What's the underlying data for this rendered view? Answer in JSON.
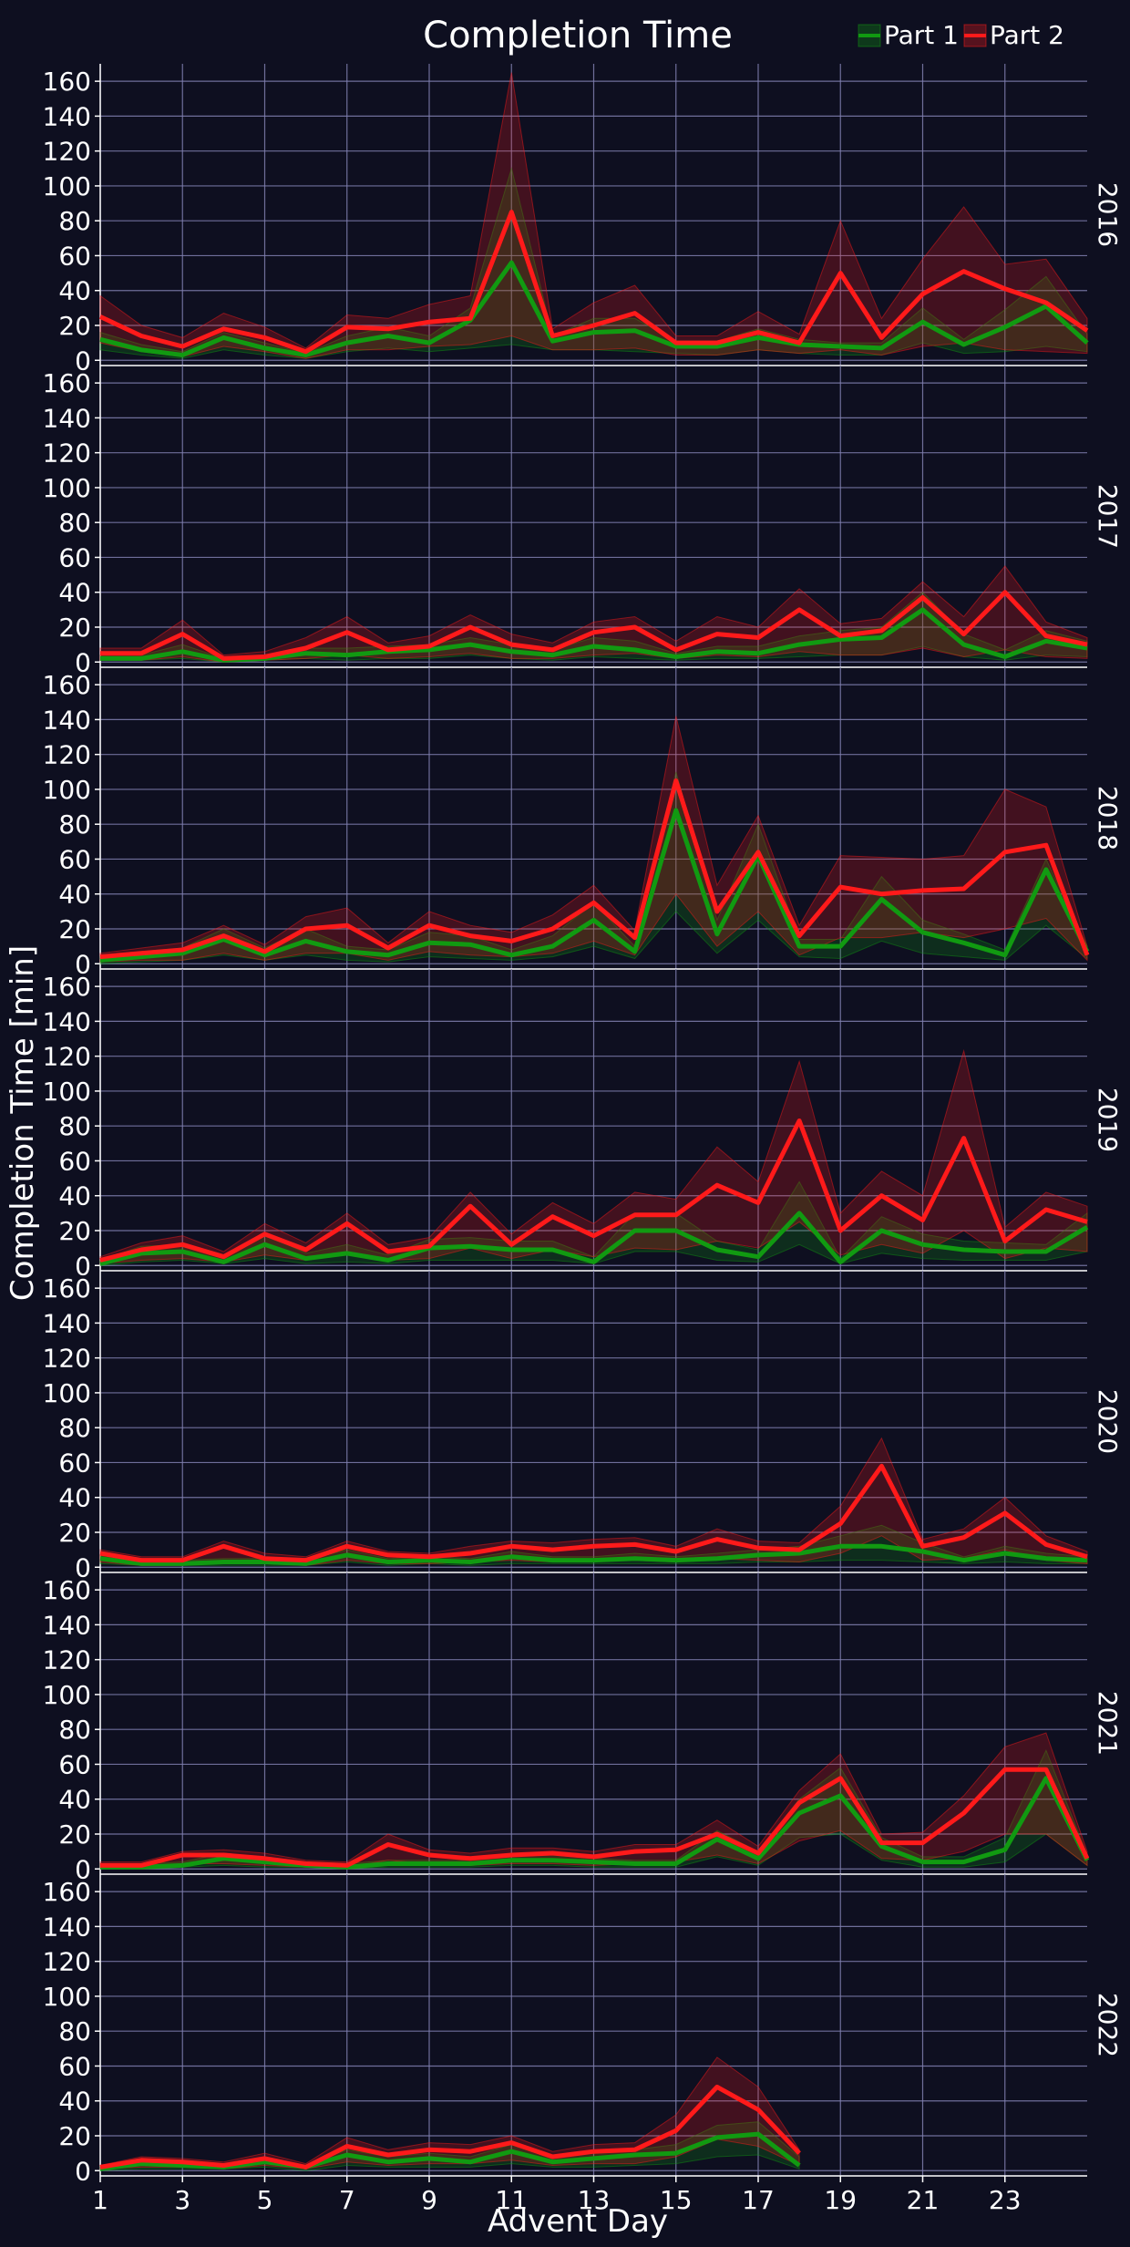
{
  "title": "Completion Time",
  "xlabel": "Advent Day",
  "ylabel": "Completion Time [min]",
  "legend": {
    "placement": "top-right",
    "items": [
      "Part 1",
      "Part 2"
    ]
  },
  "colors": {
    "background": "#0e0f20",
    "grid": "#8080b0",
    "part1": "#119a11",
    "part2": "#ff1a1a"
  },
  "chart_data": {
    "type": "line",
    "title": "Completion Time",
    "xlabel": "Advent Day",
    "ylabel": "Completion Time [min]",
    "x_ticks": [
      1,
      3,
      5,
      7,
      9,
      11,
      13,
      15,
      17,
      19,
      21,
      23
    ],
    "y_ticks": [
      0,
      20,
      40,
      60,
      80,
      100,
      120,
      140,
      160
    ],
    "xlim": [
      1,
      25
    ],
    "ylim": [
      -3,
      170
    ],
    "grid": true,
    "series_names": [
      "Part 1",
      "Part 2"
    ],
    "panels": [
      {
        "label": "2016",
        "part1": {
          "median": [
            12,
            6,
            3,
            13,
            7,
            3,
            10,
            14,
            10,
            23,
            56,
            11,
            16,
            17,
            8,
            8,
            13,
            9,
            8,
            7,
            22,
            9,
            19,
            31,
            10
          ],
          "lower": [
            6,
            3,
            1,
            6,
            3,
            1,
            5,
            7,
            5,
            7,
            9,
            6,
            6,
            5,
            4,
            3,
            6,
            4,
            3,
            3,
            10,
            4,
            5,
            8,
            5
          ],
          "upper": [
            16,
            9,
            5,
            16,
            10,
            4,
            14,
            19,
            14,
            30,
            110,
            14,
            24,
            24,
            11,
            11,
            18,
            12,
            10,
            10,
            30,
            12,
            29,
            48,
            15
          ]
        },
        "part2": {
          "median": [
            25,
            14,
            8,
            18,
            13,
            5,
            19,
            18,
            22,
            24,
            85,
            14,
            20,
            27,
            10,
            10,
            16,
            10,
            50,
            13,
            38,
            51,
            41,
            33,
            17
          ],
          "lower": [
            10,
            5,
            2,
            8,
            5,
            1,
            6,
            6,
            8,
            9,
            14,
            6,
            6,
            7,
            3,
            3,
            6,
            4,
            6,
            3,
            8,
            10,
            6,
            5,
            4
          ],
          "upper": [
            37,
            20,
            13,
            27,
            19,
            7,
            26,
            24,
            32,
            37,
            165,
            18,
            33,
            43,
            14,
            14,
            28,
            15,
            80,
            24,
            58,
            88,
            55,
            58,
            24
          ]
        }
      },
      {
        "label": "2017",
        "part1": {
          "median": [
            2,
            2,
            6,
            1,
            2,
            5,
            4,
            6,
            7,
            10,
            6,
            4,
            9,
            7,
            3,
            6,
            5,
            10,
            13,
            14,
            30,
            10,
            3,
            12,
            8
          ],
          "lower": [
            1,
            1,
            2,
            0,
            1,
            2,
            1,
            2,
            2,
            4,
            2,
            1,
            3,
            2,
            1,
            2,
            2,
            3,
            4,
            4,
            9,
            3,
            1,
            4,
            3
          ],
          "upper": [
            4,
            4,
            10,
            2,
            4,
            8,
            8,
            9,
            10,
            14,
            10,
            7,
            14,
            12,
            5,
            9,
            9,
            15,
            18,
            20,
            40,
            16,
            7,
            18,
            12
          ]
        },
        "part2": {
          "median": [
            5,
            5,
            16,
            2,
            3,
            8,
            17,
            7,
            9,
            20,
            10,
            7,
            17,
            20,
            7,
            16,
            14,
            30,
            15,
            18,
            37,
            16,
            40,
            15,
            10
          ],
          "lower": [
            1,
            1,
            3,
            0,
            1,
            2,
            4,
            2,
            3,
            5,
            2,
            2,
            4,
            5,
            2,
            4,
            3,
            6,
            4,
            4,
            8,
            3,
            7,
            3,
            2
          ],
          "upper": [
            8,
            8,
            24,
            4,
            6,
            14,
            26,
            11,
            15,
            27,
            16,
            11,
            23,
            26,
            12,
            26,
            20,
            42,
            22,
            25,
            46,
            26,
            55,
            23,
            14
          ]
        }
      },
      {
        "label": "2018",
        "part1": {
          "median": [
            2,
            4,
            6,
            14,
            5,
            13,
            7,
            5,
            12,
            11,
            5,
            10,
            25,
            7,
            88,
            17,
            62,
            10,
            10,
            37,
            18,
            12,
            5,
            54,
            7
          ],
          "lower": [
            0,
            1,
            2,
            5,
            2,
            5,
            2,
            1,
            4,
            3,
            2,
            4,
            10,
            3,
            30,
            6,
            25,
            4,
            3,
            13,
            6,
            4,
            2,
            22,
            3
          ],
          "upper": [
            4,
            7,
            9,
            20,
            9,
            20,
            10,
            8,
            18,
            16,
            8,
            16,
            35,
            10,
            110,
            25,
            80,
            14,
            14,
            50,
            25,
            17,
            8,
            60,
            10
          ]
        },
        "part2": {
          "median": [
            4,
            6,
            8,
            16,
            7,
            20,
            22,
            9,
            22,
            16,
            13,
            20,
            35,
            15,
            105,
            30,
            64,
            16,
            44,
            40,
            42,
            43,
            64,
            68,
            5
          ],
          "lower": [
            1,
            2,
            2,
            6,
            2,
            6,
            6,
            2,
            7,
            5,
            4,
            6,
            13,
            5,
            40,
            10,
            30,
            5,
            15,
            15,
            18,
            15,
            20,
            26,
            2
          ],
          "upper": [
            6,
            9,
            12,
            22,
            11,
            27,
            32,
            12,
            30,
            22,
            18,
            28,
            45,
            19,
            142,
            45,
            85,
            22,
            62,
            61,
            60,
            62,
            100,
            90,
            10
          ]
        }
      },
      {
        "label": "2019",
        "part1": {
          "median": [
            1,
            7,
            8,
            2,
            12,
            4,
            7,
            3,
            10,
            11,
            9,
            9,
            2,
            20,
            20,
            9,
            5,
            30,
            2,
            20,
            12,
            9,
            8,
            8,
            22
          ],
          "lower": [
            0,
            2,
            3,
            1,
            4,
            1,
            2,
            1,
            3,
            3,
            3,
            3,
            1,
            8,
            8,
            3,
            2,
            12,
            1,
            7,
            4,
            3,
            3,
            3,
            8
          ],
          "upper": [
            3,
            11,
            12,
            4,
            18,
            7,
            12,
            6,
            15,
            16,
            14,
            14,
            5,
            30,
            30,
            14,
            9,
            48,
            4,
            28,
            18,
            14,
            13,
            12,
            30
          ]
        },
        "part2": {
          "median": [
            3,
            9,
            12,
            5,
            18,
            9,
            24,
            8,
            11,
            34,
            12,
            28,
            17,
            29,
            29,
            46,
            36,
            83,
            20,
            40,
            26,
            73,
            14,
            32,
            25
          ],
          "lower": [
            1,
            3,
            4,
            2,
            6,
            3,
            8,
            3,
            4,
            10,
            4,
            9,
            5,
            10,
            9,
            14,
            10,
            25,
            6,
            12,
            7,
            20,
            4,
            10,
            8
          ],
          "upper": [
            5,
            13,
            17,
            8,
            24,
            13,
            30,
            12,
            16,
            42,
            18,
            36,
            24,
            42,
            38,
            68,
            48,
            117,
            30,
            54,
            40,
            123,
            22,
            42,
            34
          ]
        }
      },
      {
        "label": "2020",
        "part1": {
          "median": [
            5,
            2,
            2,
            3,
            3,
            2,
            7,
            3,
            4,
            3,
            6,
            4,
            4,
            5,
            4,
            5,
            7,
            8,
            12,
            12,
            9,
            4,
            8,
            5,
            4
          ],
          "lower": [
            2,
            1,
            1,
            1,
            1,
            1,
            3,
            1,
            2,
            1,
            2,
            2,
            2,
            2,
            2,
            2,
            3,
            3,
            4,
            4,
            3,
            2,
            3,
            2,
            2
          ],
          "upper": [
            7,
            4,
            4,
            5,
            5,
            4,
            10,
            5,
            6,
            5,
            9,
            6,
            6,
            8,
            6,
            8,
            10,
            12,
            18,
            24,
            14,
            6,
            12,
            8,
            6
          ]
        },
        "part2": {
          "median": [
            8,
            4,
            4,
            12,
            5,
            4,
            12,
            7,
            6,
            8,
            12,
            10,
            12,
            13,
            9,
            16,
            11,
            10,
            25,
            58,
            12,
            17,
            31,
            13,
            6
          ],
          "lower": [
            3,
            1,
            1,
            4,
            2,
            1,
            4,
            2,
            2,
            3,
            4,
            3,
            4,
            4,
            3,
            5,
            4,
            3,
            8,
            18,
            4,
            5,
            10,
            4,
            2
          ],
          "upper": [
            10,
            6,
            6,
            15,
            8,
            6,
            15,
            9,
            8,
            12,
            15,
            14,
            16,
            17,
            12,
            22,
            15,
            14,
            35,
            74,
            16,
            22,
            40,
            18,
            9
          ]
        }
      },
      {
        "label": "2021",
        "part1": {
          "median": [
            1,
            1,
            2,
            6,
            4,
            2,
            1,
            3,
            3,
            3,
            5,
            5,
            4,
            3,
            3,
            17,
            6,
            32,
            42,
            13,
            4,
            4,
            11,
            52,
            5
          ],
          "lower": [
            0,
            0,
            1,
            2,
            1,
            1,
            0,
            1,
            1,
            1,
            2,
            2,
            1,
            1,
            1,
            7,
            2,
            18,
            20,
            5,
            1,
            1,
            4,
            20,
            2
          ],
          "upper": [
            3,
            3,
            4,
            9,
            6,
            4,
            3,
            5,
            5,
            5,
            8,
            8,
            6,
            5,
            5,
            22,
            10,
            40,
            58,
            18,
            7,
            7,
            18,
            68,
            8
          ]
        },
        "part2": {
          "median": [
            2,
            2,
            8,
            8,
            6,
            3,
            2,
            14,
            8,
            6,
            8,
            9,
            7,
            10,
            11,
            20,
            9,
            38,
            52,
            15,
            15,
            32,
            57,
            57,
            6
          ],
          "lower": [
            1,
            1,
            3,
            3,
            2,
            1,
            1,
            5,
            3,
            2,
            3,
            3,
            2,
            3,
            4,
            8,
            3,
            16,
            22,
            6,
            5,
            10,
            20,
            20,
            2
          ],
          "upper": [
            4,
            4,
            10,
            11,
            9,
            5,
            4,
            20,
            11,
            9,
            12,
            12,
            10,
            14,
            14,
            28,
            13,
            45,
            66,
            20,
            21,
            42,
            70,
            78,
            10
          ]
        }
      },
      {
        "label": "2022",
        "part1": {
          "median": [
            1,
            4,
            3,
            2,
            5,
            2,
            9,
            5,
            7,
            5,
            11,
            5,
            7,
            9,
            10,
            19,
            21,
            3
          ],
          "lower": [
            0,
            1,
            1,
            1,
            2,
            0,
            3,
            2,
            2,
            2,
            4,
            2,
            2,
            3,
            4,
            8,
            9,
            1
          ],
          "upper": [
            2,
            6,
            5,
            4,
            7,
            3,
            12,
            8,
            10,
            8,
            15,
            8,
            10,
            12,
            15,
            26,
            28,
            8
          ]
        },
        "part2": {
          "median": [
            2,
            6,
            5,
            3,
            7,
            2,
            14,
            9,
            12,
            11,
            16,
            8,
            11,
            12,
            23,
            48,
            35,
            10
          ],
          "lower": [
            1,
            2,
            2,
            1,
            3,
            1,
            5,
            3,
            4,
            4,
            6,
            3,
            4,
            4,
            8,
            18,
            14,
            3
          ],
          "upper": [
            3,
            8,
            7,
            5,
            10,
            4,
            19,
            12,
            16,
            15,
            20,
            11,
            15,
            16,
            32,
            65,
            48,
            12
          ]
        }
      }
    ]
  }
}
